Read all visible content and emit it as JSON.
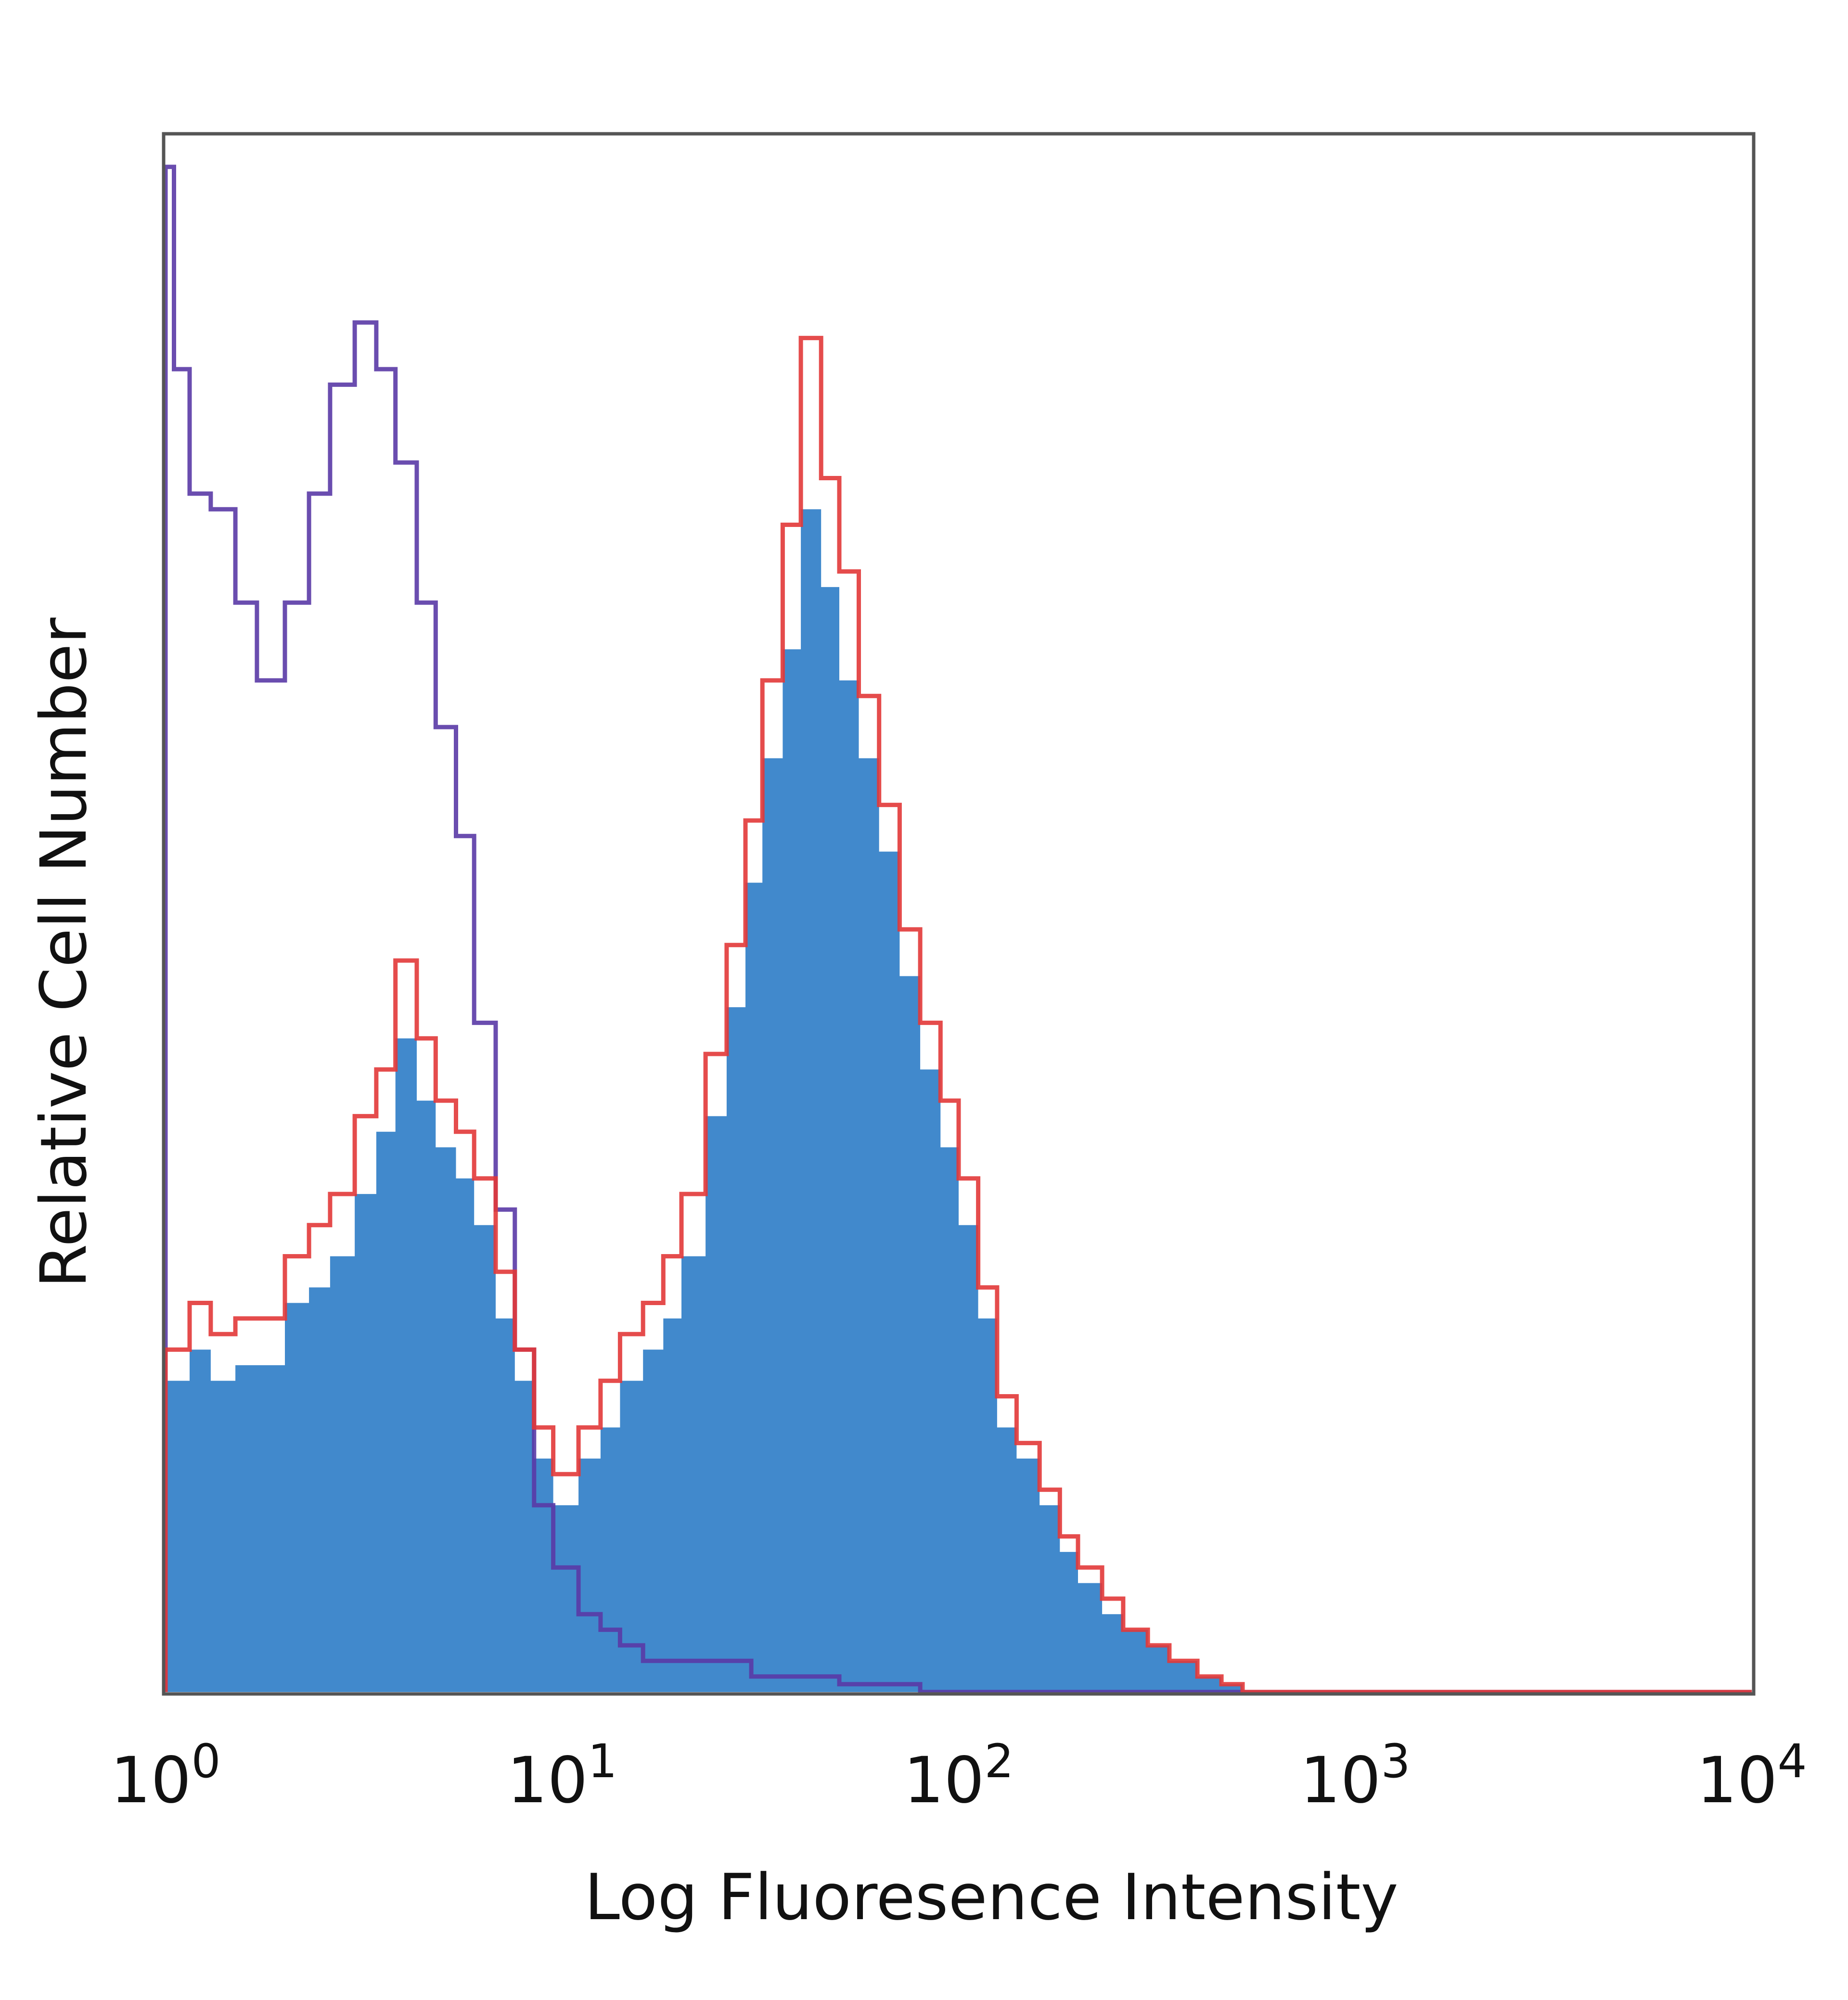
{
  "chart_data": {
    "type": "histogram",
    "xscale": "log",
    "xlim": [
      1,
      10000
    ],
    "ylim": [
      0,
      100
    ],
    "title": "",
    "xlabel": "Log Fluoresence Intensity",
    "ylabel": "Relative Cell Number",
    "x_ticks": [
      {
        "base": "10",
        "exp": "0",
        "value": 1
      },
      {
        "base": "10",
        "exp": "1",
        "value": 10
      },
      {
        "base": "10",
        "exp": "2",
        "value": 100
      },
      {
        "base": "10",
        "exp": "3",
        "value": 1000
      },
      {
        "base": "10",
        "exp": "4",
        "value": 10000
      }
    ],
    "grid": false,
    "legend": "none",
    "series": [
      {
        "style": "filled",
        "color": "#4189cc",
        "x": [
          1.0,
          1.15,
          1.3,
          1.5,
          1.7,
          2.0,
          2.3,
          2.6,
          3.0,
          3.4,
          3.8,
          4.3,
          4.8,
          5.4,
          6.0,
          6.8,
          7.6,
          8.5,
          9.5,
          11,
          12.5,
          14,
          16,
          18,
          20,
          23,
          26,
          29,
          32,
          36,
          40,
          45,
          50,
          56,
          63,
          71,
          80,
          90,
          100,
          112,
          125,
          140,
          160,
          180,
          200,
          230,
          260,
          300,
          340,
          400,
          460,
          520,
          600,
          700,
          1000,
          10000
        ],
        "values": [
          20,
          22,
          20,
          21,
          21,
          25,
          26,
          28,
          32,
          36,
          42,
          38,
          35,
          33,
          30,
          24,
          20,
          15,
          12,
          15,
          17,
          20,
          22,
          24,
          28,
          37,
          44,
          52,
          60,
          67,
          76,
          71,
          65,
          60,
          54,
          46,
          40,
          35,
          30,
          24,
          17,
          15,
          12,
          9,
          7,
          5,
          4,
          3,
          2,
          1,
          0.5,
          0,
          0,
          0,
          0,
          0
        ]
      },
      {
        "style": "outline",
        "color": "#e23838",
        "x": [
          1.0,
          1.15,
          1.3,
          1.5,
          1.7,
          2.0,
          2.3,
          2.6,
          3.0,
          3.4,
          3.8,
          4.3,
          4.8,
          5.4,
          6.0,
          6.8,
          7.6,
          8.5,
          9.5,
          11,
          12.5,
          14,
          16,
          18,
          20,
          23,
          26,
          29,
          32,
          36,
          40,
          45,
          50,
          56,
          63,
          71,
          80,
          90,
          100,
          112,
          125,
          140,
          160,
          180,
          200,
          230,
          260,
          300,
          340,
          400,
          460,
          520,
          600,
          700,
          1000,
          10000
        ],
        "values": [
          22,
          25,
          23,
          24,
          24,
          28,
          30,
          32,
          37,
          40,
          47,
          42,
          38,
          36,
          33,
          27,
          22,
          17,
          14,
          17,
          20,
          23,
          25,
          28,
          32,
          41,
          48,
          56,
          65,
          75,
          87,
          78,
          72,
          64,
          57,
          49,
          43,
          38,
          33,
          26,
          19,
          16,
          13,
          10,
          8,
          6,
          4,
          3,
          2,
          1,
          0.5,
          0,
          0,
          0,
          0,
          0
        ]
      },
      {
        "style": "outline",
        "color": "#5a3aa6",
        "x": [
          1.0,
          1.05,
          1.15,
          1.3,
          1.5,
          1.7,
          2.0,
          2.3,
          2.6,
          3.0,
          3.4,
          3.8,
          4.3,
          4.8,
          5.4,
          6.0,
          6.8,
          7.6,
          8.5,
          9.5,
          11,
          12.5,
          14,
          16,
          18,
          20,
          25,
          30,
          35,
          40,
          50,
          60,
          80,
          100,
          10000
        ],
        "values": [
          98,
          85,
          77,
          76,
          70,
          65,
          70,
          77,
          84,
          88,
          85,
          79,
          70,
          62,
          55,
          43,
          31,
          22,
          12,
          8,
          5,
          4,
          3,
          2,
          2,
          2,
          2,
          1,
          1,
          1,
          0.5,
          0.5,
          0,
          0,
          0
        ]
      }
    ]
  }
}
